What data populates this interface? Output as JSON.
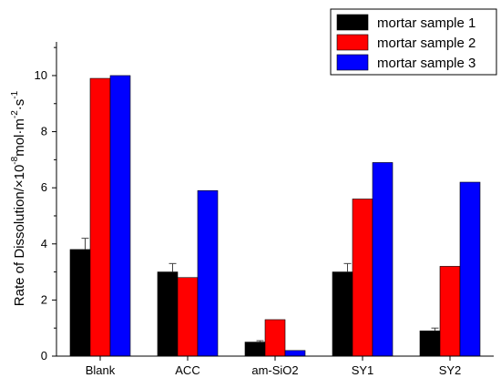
{
  "chart_data": {
    "type": "bar",
    "categories": [
      "Blank",
      "ACC",
      "am-SiO2",
      "SY1",
      "SY2"
    ],
    "series": [
      {
        "name": "mortar sample 1",
        "color": "#000000",
        "values": [
          3.8,
          3.0,
          0.5,
          3.0,
          0.9
        ],
        "errors": [
          0.4,
          0.3,
          0.05,
          0.3,
          0.1
        ]
      },
      {
        "name": "mortar sample 2",
        "color": "#ff0000",
        "values": [
          9.9,
          2.8,
          1.3,
          5.6,
          3.2
        ]
      },
      {
        "name": "mortar sample 3",
        "color": "#0000ff",
        "values": [
          10.0,
          5.9,
          0.2,
          6.9,
          6.2
        ]
      }
    ],
    "ylabel": {
      "base": "Rate of Dissolution/×10",
      "exp1": "-8",
      "mid": "mol·m",
      "exp2": "-2",
      "mid2": "·s",
      "exp3": "-1"
    },
    "ylim": [
      0,
      11.2
    ],
    "yticks": [
      "0",
      "2",
      "4",
      "6",
      "8",
      "10"
    ],
    "legend_position": "top-right",
    "grid": false
  }
}
